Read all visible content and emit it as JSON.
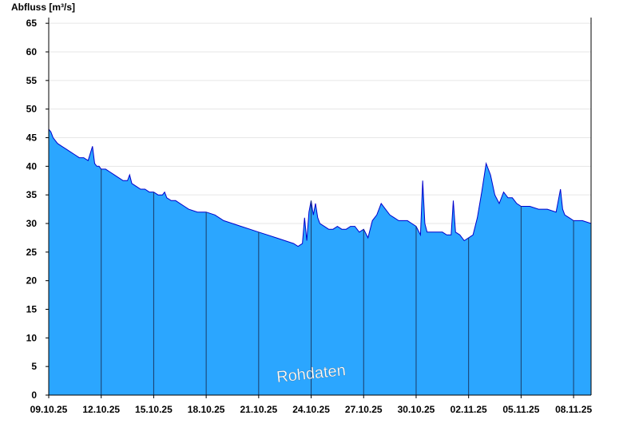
{
  "chart_data": {
    "type": "area",
    "title": "",
    "ylabel": "Abfluss [m³/s]",
    "xlabel": "",
    "ylim": [
      0,
      66
    ],
    "yticks": [
      0,
      5,
      10,
      15,
      20,
      25,
      30,
      35,
      40,
      45,
      50,
      55,
      60,
      65
    ],
    "xlim": [
      "2025-10-09",
      "2025-11-09"
    ],
    "xticks": [
      {
        "date": "2025-10-09",
        "label": "09.10.25"
      },
      {
        "date": "2025-10-12",
        "label": "12.10.25"
      },
      {
        "date": "2025-10-15",
        "label": "15.10.25"
      },
      {
        "date": "2025-10-18",
        "label": "18.10.25"
      },
      {
        "date": "2025-10-21",
        "label": "21.10.25"
      },
      {
        "date": "2025-10-24",
        "label": "24.10.25"
      },
      {
        "date": "2025-10-27",
        "label": "27.10.25"
      },
      {
        "date": "2025-10-30",
        "label": "30.10.25"
      },
      {
        "date": "2025-11-02",
        "label": "02.11.25"
      },
      {
        "date": "2025-11-05",
        "label": "05.11.25"
      },
      {
        "date": "2025-11-08",
        "label": "08.11.25"
      }
    ],
    "grid": "horizontal",
    "watermark": "Rohdaten",
    "colors": {
      "fill": "#2ba6ff",
      "line": "#0000cc",
      "grid": "#e6e6e6",
      "vlines": "#1a3a66"
    },
    "series": [
      {
        "x": [
          "2025-10-09 00:00",
          "2025-10-09 03:00",
          "2025-10-09 06:00",
          "2025-10-09 12:00",
          "2025-10-09 18:00",
          "2025-10-10 00:00",
          "2025-10-10 06:00",
          "2025-10-10 12:00",
          "2025-10-10 18:00",
          "2025-10-11 00:00",
          "2025-10-11 06:00",
          "2025-10-11 12:00",
          "2025-10-11 15:00",
          "2025-10-11 18:00",
          "2025-10-11 21:00",
          "2025-10-12 00:00",
          "2025-10-12 06:00",
          "2025-10-12 12:00",
          "2025-10-12 18:00",
          "2025-10-13 00:00",
          "2025-10-13 06:00",
          "2025-10-13 12:00",
          "2025-10-13 15:00",
          "2025-10-13 18:00",
          "2025-10-14 00:00",
          "2025-10-14 06:00",
          "2025-10-14 12:00",
          "2025-10-14 18:00",
          "2025-10-15 00:00",
          "2025-10-15 06:00",
          "2025-10-15 12:00",
          "2025-10-15 15:00",
          "2025-10-15 18:00",
          "2025-10-16 00:00",
          "2025-10-16 06:00",
          "2025-10-16 12:00",
          "2025-10-16 18:00",
          "2025-10-17 00:00",
          "2025-10-17 12:00",
          "2025-10-18 00:00",
          "2025-10-18 12:00",
          "2025-10-19 00:00",
          "2025-10-19 12:00",
          "2025-10-20 00:00",
          "2025-10-20 12:00",
          "2025-10-21 00:00",
          "2025-10-21 12:00",
          "2025-10-22 00:00",
          "2025-10-22 12:00",
          "2025-10-23 00:00",
          "2025-10-23 06:00",
          "2025-10-23 12:00",
          "2025-10-23 15:00",
          "2025-10-23 18:00",
          "2025-10-23 21:00",
          "2025-10-24 00:00",
          "2025-10-24 03:00",
          "2025-10-24 06:00",
          "2025-10-24 09:00",
          "2025-10-24 12:00",
          "2025-10-24 18:00",
          "2025-10-25 00:00",
          "2025-10-25 06:00",
          "2025-10-25 12:00",
          "2025-10-25 18:00",
          "2025-10-26 00:00",
          "2025-10-26 06:00",
          "2025-10-26 12:00",
          "2025-10-26 18:00",
          "2025-10-27 00:00",
          "2025-10-27 06:00",
          "2025-10-27 12:00",
          "2025-10-27 18:00",
          "2025-10-28 00:00",
          "2025-10-28 06:00",
          "2025-10-28 12:00",
          "2025-10-28 18:00",
          "2025-10-29 00:00",
          "2025-10-29 06:00",
          "2025-10-29 12:00",
          "2025-10-29 18:00",
          "2025-10-30 00:00",
          "2025-10-30 06:00",
          "2025-10-30 09:00",
          "2025-10-30 12:00",
          "2025-10-30 15:00",
          "2025-10-30 18:00",
          "2025-10-31 00:00",
          "2025-10-31 06:00",
          "2025-10-31 12:00",
          "2025-10-31 18:00",
          "2025-11-01 00:00",
          "2025-11-01 03:00",
          "2025-11-01 06:00",
          "2025-11-01 12:00",
          "2025-11-01 18:00",
          "2025-11-02 00:00",
          "2025-11-02 06:00",
          "2025-11-02 12:00",
          "2025-11-02 18:00",
          "2025-11-03 00:00",
          "2025-11-03 06:00",
          "2025-11-03 12:00",
          "2025-11-03 18:00",
          "2025-11-04 00:00",
          "2025-11-04 06:00",
          "2025-11-04 12:00",
          "2025-11-04 18:00",
          "2025-11-05 00:00",
          "2025-11-05 12:00",
          "2025-11-06 00:00",
          "2025-11-06 12:00",
          "2025-11-07 00:00",
          "2025-11-07 06:00",
          "2025-11-07 09:00",
          "2025-11-07 12:00",
          "2025-11-07 18:00",
          "2025-11-08 00:00",
          "2025-11-08 12:00",
          "2025-11-09 00:00"
        ],
        "values": [
          46.5,
          46.0,
          45.0,
          44.0,
          43.5,
          43.0,
          42.5,
          42.0,
          41.5,
          41.5,
          41.0,
          43.5,
          40.5,
          40.0,
          40.0,
          39.5,
          39.5,
          39.0,
          38.5,
          38.0,
          37.5,
          37.5,
          38.5,
          37.0,
          36.5,
          36.0,
          36.0,
          35.5,
          35.5,
          35.0,
          35.0,
          35.5,
          34.5,
          34.0,
          34.0,
          33.5,
          33.0,
          32.5,
          32.0,
          32.0,
          31.5,
          30.5,
          30.0,
          29.5,
          29.0,
          28.5,
          28.0,
          27.5,
          27.0,
          26.5,
          26.0,
          26.5,
          31.0,
          27.0,
          32.0,
          34.0,
          31.5,
          33.5,
          31.0,
          30.0,
          29.5,
          29.0,
          29.0,
          29.5,
          29.0,
          29.0,
          29.5,
          29.5,
          28.5,
          29.0,
          27.5,
          30.5,
          31.5,
          33.5,
          32.5,
          31.5,
          31.0,
          30.5,
          30.5,
          30.5,
          30.0,
          29.5,
          28.0,
          37.5,
          30.0,
          28.5,
          28.5,
          28.5,
          28.5,
          28.5,
          28.0,
          28.0,
          34.0,
          28.5,
          28.0,
          27.0,
          27.5,
          28.0,
          31.0,
          35.5,
          40.5,
          38.5,
          35.0,
          33.5,
          35.5,
          34.5,
          34.5,
          33.5,
          33.0,
          33.0,
          32.5,
          32.5,
          32.0,
          36.0,
          32.5,
          31.5,
          31.0,
          30.5,
          30.5,
          30.0
        ]
      }
    ]
  }
}
